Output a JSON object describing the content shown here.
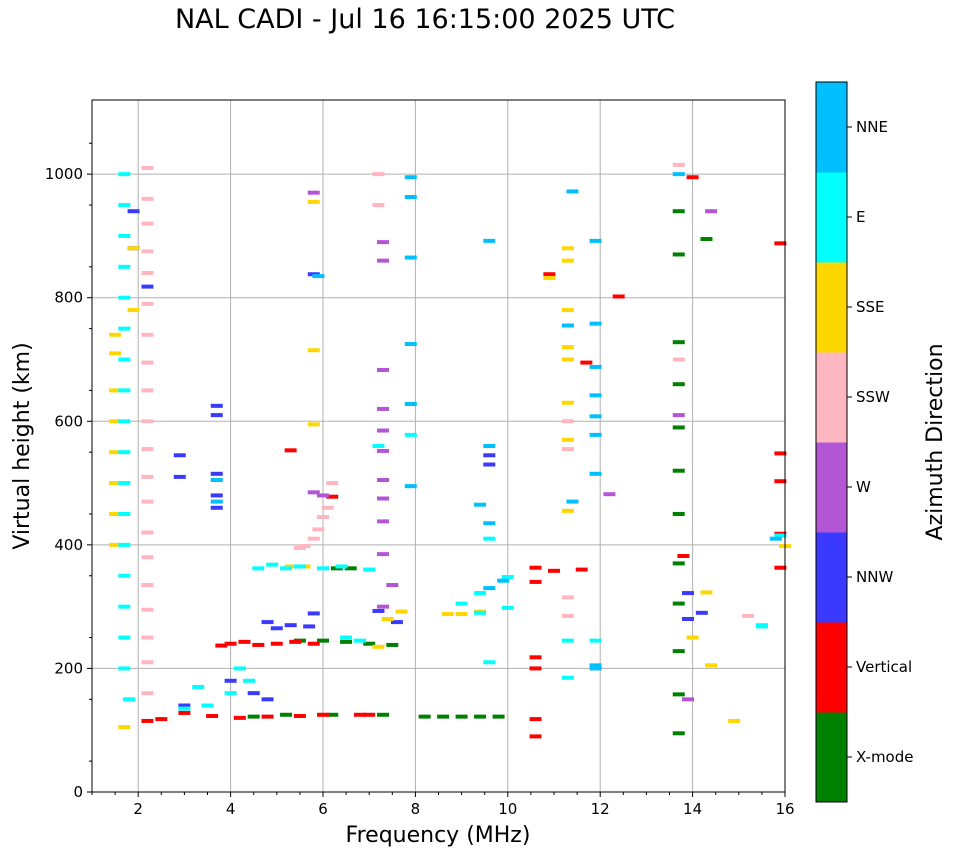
{
  "chart_data": {
    "type": "scatter",
    "title": "NAL CADI - Jul 16 16:15:00 2025 UTC",
    "xlabel": "Frequency (MHz)",
    "ylabel": "Virtual height (km)",
    "xlim": [
      1,
      16
    ],
    "ylim": [
      0,
      1120
    ],
    "xticks": [
      2,
      4,
      6,
      8,
      10,
      12,
      14,
      16
    ],
    "yticks": [
      0,
      200,
      400,
      600,
      800,
      1000
    ],
    "grid": true,
    "colorbar": {
      "label": "Azimuth Direction",
      "categories": [
        {
          "name": "X-mode",
          "color": "#008000"
        },
        {
          "name": "Vertical",
          "color": "#ff0000"
        },
        {
          "name": "NNW",
          "color": "#3a3aff"
        },
        {
          "name": "W",
          "color": "#b455d6"
        },
        {
          "name": "SSW",
          "color": "#ffb6c1"
        },
        {
          "name": "SSE",
          "color": "#ffd700"
        },
        {
          "name": "E",
          "color": "#00ffff"
        },
        {
          "name": "NNE",
          "color": "#00bfff"
        }
      ]
    },
    "series": [
      {
        "name": "X-mode",
        "points": [
          [
            6.3,
            362
          ],
          [
            6.6,
            362
          ],
          [
            6.0,
            245
          ],
          [
            6.5,
            243
          ],
          [
            7.0,
            240
          ],
          [
            7.5,
            238
          ],
          [
            5.5,
            245
          ],
          [
            8.2,
            122
          ],
          [
            8.6,
            122
          ],
          [
            9.0,
            122
          ],
          [
            9.4,
            122
          ],
          [
            9.8,
            122
          ],
          [
            13.7,
            940
          ],
          [
            13.7,
            870
          ],
          [
            13.7,
            728
          ],
          [
            13.7,
            660
          ],
          [
            13.7,
            590
          ],
          [
            13.7,
            520
          ],
          [
            13.7,
            450
          ],
          [
            13.7,
            370
          ],
          [
            13.7,
            305
          ],
          [
            13.7,
            228
          ],
          [
            13.7,
            158
          ],
          [
            13.7,
            95
          ],
          [
            14.3,
            895
          ],
          [
            6.2,
            125
          ],
          [
            7.3,
            125
          ],
          [
            5.2,
            125
          ],
          [
            4.5,
            122
          ]
        ]
      },
      {
        "name": "Vertical",
        "points": [
          [
            3.8,
            237
          ],
          [
            4.0,
            240
          ],
          [
            4.3,
            243
          ],
          [
            4.6,
            238
          ],
          [
            5.0,
            240
          ],
          [
            5.4,
            243
          ],
          [
            5.8,
            240
          ],
          [
            6.8,
            125
          ],
          [
            7.0,
            125
          ],
          [
            6.0,
            125
          ],
          [
            5.5,
            123
          ],
          [
            4.8,
            122
          ],
          [
            4.2,
            120
          ],
          [
            3.6,
            123
          ],
          [
            3.0,
            128
          ],
          [
            2.5,
            118
          ],
          [
            2.2,
            115
          ],
          [
            10.6,
            363
          ],
          [
            10.6,
            340
          ],
          [
            11.0,
            358
          ],
          [
            10.6,
            218
          ],
          [
            10.6,
            200
          ],
          [
            10.6,
            118
          ],
          [
            10.6,
            90
          ],
          [
            10.9,
            838
          ],
          [
            12.4,
            802
          ],
          [
            11.7,
            695
          ],
          [
            15.9,
            888
          ],
          [
            15.9,
            548
          ],
          [
            15.9,
            503
          ],
          [
            15.9,
            418
          ],
          [
            15.9,
            363
          ],
          [
            14.0,
            995
          ],
          [
            13.8,
            382
          ],
          [
            6.2,
            478
          ],
          [
            5.3,
            553
          ],
          [
            11.6,
            360
          ]
        ]
      },
      {
        "name": "NNW",
        "points": [
          [
            1.9,
            940
          ],
          [
            1.9,
            880
          ],
          [
            2.2,
            818
          ],
          [
            3.7,
            625
          ],
          [
            3.7,
            610
          ],
          [
            2.9,
            545
          ],
          [
            2.9,
            510
          ],
          [
            3.7,
            515
          ],
          [
            3.7,
            480
          ],
          [
            3.7,
            460
          ],
          [
            5.8,
            838
          ],
          [
            4.8,
            275
          ],
          [
            5.0,
            265
          ],
          [
            5.3,
            270
          ],
          [
            5.7,
            268
          ],
          [
            5.8,
            289
          ],
          [
            7.2,
            293
          ],
          [
            7.6,
            275
          ],
          [
            4.0,
            180
          ],
          [
            4.5,
            160
          ],
          [
            4.8,
            150
          ],
          [
            3.0,
            140
          ],
          [
            13.9,
            322
          ],
          [
            13.9,
            280
          ],
          [
            14.2,
            290
          ],
          [
            9.6,
            545
          ],
          [
            9.6,
            530
          ]
        ]
      },
      {
        "name": "W",
        "points": [
          [
            7.3,
            890
          ],
          [
            7.3,
            860
          ],
          [
            7.3,
            683
          ],
          [
            7.3,
            620
          ],
          [
            7.3,
            585
          ],
          [
            7.3,
            552
          ],
          [
            7.3,
            505
          ],
          [
            7.3,
            475
          ],
          [
            7.3,
            438
          ],
          [
            7.3,
            385
          ],
          [
            5.8,
            970
          ],
          [
            5.8,
            485
          ],
          [
            6.0,
            480
          ],
          [
            7.5,
            335
          ],
          [
            7.3,
            300
          ],
          [
            14.4,
            940
          ],
          [
            12.2,
            482
          ],
          [
            13.7,
            610
          ],
          [
            13.9,
            150
          ]
        ]
      },
      {
        "name": "SSW",
        "points": [
          [
            2.2,
            1010
          ],
          [
            2.2,
            960
          ],
          [
            2.2,
            920
          ],
          [
            2.2,
            875
          ],
          [
            2.2,
            840
          ],
          [
            2.2,
            790
          ],
          [
            2.2,
            740
          ],
          [
            2.2,
            695
          ],
          [
            2.2,
            650
          ],
          [
            2.2,
            600
          ],
          [
            2.2,
            555
          ],
          [
            2.2,
            510
          ],
          [
            2.2,
            470
          ],
          [
            2.2,
            420
          ],
          [
            2.2,
            380
          ],
          [
            2.2,
            335
          ],
          [
            2.2,
            295
          ],
          [
            2.2,
            250
          ],
          [
            2.2,
            210
          ],
          [
            2.2,
            160
          ],
          [
            7.2,
            1000
          ],
          [
            7.2,
            950
          ],
          [
            5.5,
            395
          ],
          [
            5.6,
            398
          ],
          [
            5.8,
            410
          ],
          [
            5.9,
            425
          ],
          [
            6.0,
            445
          ],
          [
            6.1,
            460
          ],
          [
            6.2,
            500
          ],
          [
            11.3,
            600
          ],
          [
            11.3,
            555
          ],
          [
            11.3,
            315
          ],
          [
            11.3,
            285
          ],
          [
            13.7,
            1015
          ],
          [
            15.2,
            285
          ],
          [
            13.7,
            700
          ]
        ]
      },
      {
        "name": "SSE",
        "points": [
          [
            1.5,
            740
          ],
          [
            1.5,
            710
          ],
          [
            1.5,
            650
          ],
          [
            1.5,
            600
          ],
          [
            1.5,
            550
          ],
          [
            1.5,
            500
          ],
          [
            1.5,
            450
          ],
          [
            1.5,
            400
          ],
          [
            1.9,
            880
          ],
          [
            1.9,
            780
          ],
          [
            11.3,
            880
          ],
          [
            11.3,
            860
          ],
          [
            11.3,
            780
          ],
          [
            11.3,
            720
          ],
          [
            11.3,
            700
          ],
          [
            11.3,
            630
          ],
          [
            11.3,
            570
          ],
          [
            11.3,
            455
          ],
          [
            10.9,
            832
          ],
          [
            5.8,
            955
          ],
          [
            5.8,
            715
          ],
          [
            5.8,
            595
          ],
          [
            5.3,
            365
          ],
          [
            5.6,
            365
          ],
          [
            8.7,
            288
          ],
          [
            9.0,
            288
          ],
          [
            9.4,
            292
          ],
          [
            7.4,
            280
          ],
          [
            7.7,
            292
          ],
          [
            14.3,
            323
          ],
          [
            14.4,
            205
          ],
          [
            14.9,
            115
          ],
          [
            16.0,
            398
          ],
          [
            14.0,
            250
          ],
          [
            1.7,
            105
          ],
          [
            7.2,
            235
          ]
        ]
      },
      {
        "name": "E",
        "points": [
          [
            1.7,
            1000
          ],
          [
            1.7,
            950
          ],
          [
            1.7,
            900
          ],
          [
            1.7,
            850
          ],
          [
            1.7,
            800
          ],
          [
            1.7,
            750
          ],
          [
            1.7,
            700
          ],
          [
            1.7,
            650
          ],
          [
            1.7,
            600
          ],
          [
            1.7,
            550
          ],
          [
            1.7,
            500
          ],
          [
            1.7,
            450
          ],
          [
            1.7,
            400
          ],
          [
            1.7,
            350
          ],
          [
            1.7,
            300
          ],
          [
            1.7,
            250
          ],
          [
            1.7,
            200
          ],
          [
            1.8,
            150
          ],
          [
            4.6,
            362
          ],
          [
            4.9,
            368
          ],
          [
            5.2,
            362
          ],
          [
            5.5,
            365
          ],
          [
            6.0,
            362
          ],
          [
            6.4,
            365
          ],
          [
            7.0,
            360
          ],
          [
            9.0,
            305
          ],
          [
            9.4,
            290
          ],
          [
            9.4,
            322
          ],
          [
            10.0,
            348
          ],
          [
            10.0,
            298
          ],
          [
            6.5,
            250
          ],
          [
            6.8,
            245
          ],
          [
            4.2,
            200
          ],
          [
            4.4,
            180
          ],
          [
            4.0,
            160
          ],
          [
            3.5,
            140
          ],
          [
            3.0,
            135
          ],
          [
            3.3,
            170
          ],
          [
            9.6,
            410
          ],
          [
            9.6,
            210
          ],
          [
            11.3,
            245
          ],
          [
            11.3,
            185
          ],
          [
            11.9,
            245
          ],
          [
            15.5,
            268
          ],
          [
            15.5,
            270
          ],
          [
            15.9,
            415
          ],
          [
            7.2,
            560
          ],
          [
            7.9,
            578
          ]
        ]
      },
      {
        "name": "NNE",
        "points": [
          [
            11.4,
            972
          ],
          [
            11.9,
            892
          ],
          [
            11.9,
            758
          ],
          [
            11.9,
            688
          ],
          [
            11.9,
            642
          ],
          [
            11.9,
            608
          ],
          [
            11.9,
            578
          ],
          [
            11.9,
            515
          ],
          [
            11.4,
            470
          ],
          [
            11.3,
            755
          ],
          [
            7.9,
            995
          ],
          [
            7.9,
            963
          ],
          [
            7.9,
            865
          ],
          [
            7.9,
            725
          ],
          [
            7.9,
            628
          ],
          [
            7.9,
            495
          ],
          [
            9.6,
            892
          ],
          [
            9.6,
            560
          ],
          [
            9.6,
            435
          ],
          [
            9.6,
            330
          ],
          [
            9.4,
            465
          ],
          [
            9.9,
            342
          ],
          [
            11.9,
            205
          ],
          [
            11.9,
            200
          ],
          [
            5.9,
            835
          ],
          [
            3.7,
            505
          ],
          [
            3.7,
            470
          ],
          [
            13.7,
            1000
          ],
          [
            15.8,
            410
          ]
        ]
      }
    ]
  }
}
